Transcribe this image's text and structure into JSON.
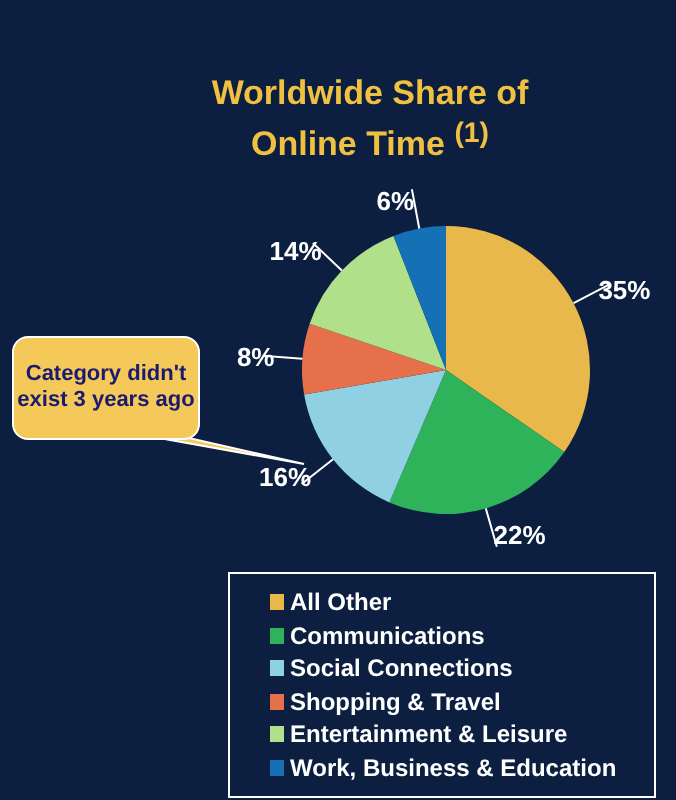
{
  "chart_data": {
    "type": "pie",
    "title": "Worldwide Share of Online Time $^{(1)}$",
    "categories": [
      "All Other",
      "Communications",
      "Social Connections",
      "Shopping & Travel",
      "Entertainment & Leisure",
      "Work, Business & Education"
    ],
    "values": [
      35,
      22,
      16,
      8,
      14,
      6
    ],
    "value_labels": [
      "35%",
      "22%",
      "16%",
      "8%",
      "14%",
      "6%"
    ],
    "colors": [
      "#e8b84a",
      "#2eb35a",
      "#8fd0e2",
      "#e5704a",
      "#b0e08a",
      "#1670b5"
    ],
    "annotations": [
      "Category didn't exist 3 years ago"
    ],
    "legend": "bottom right"
  }
}
